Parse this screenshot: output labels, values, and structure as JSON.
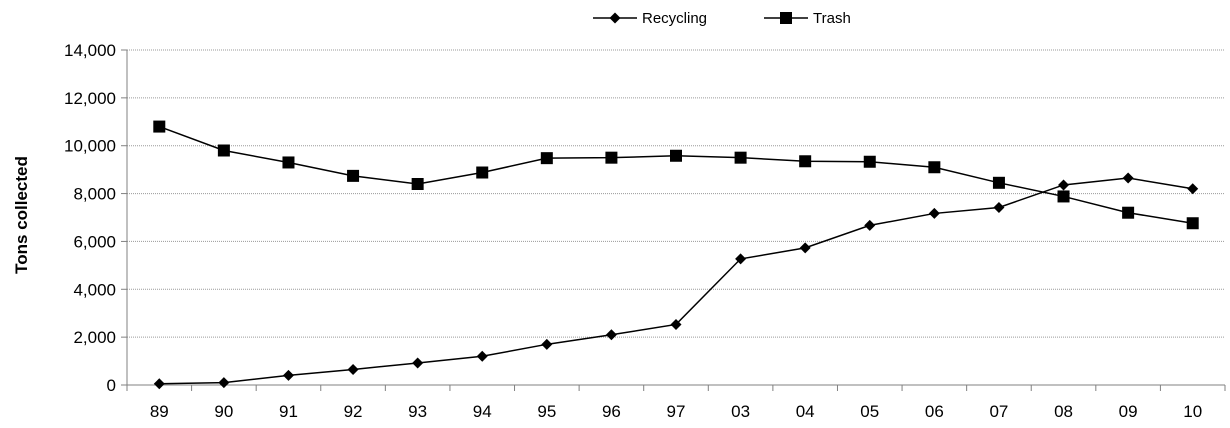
{
  "chart_data": {
    "type": "line",
    "title": "",
    "xlabel": "",
    "ylabel": "Tons collected",
    "categories": [
      "89",
      "90",
      "91",
      "92",
      "93",
      "94",
      "95",
      "96",
      "97",
      "03",
      "04",
      "05",
      "06",
      "07",
      "08",
      "09",
      "10"
    ],
    "series": [
      {
        "name": "Recycling",
        "marker": "diamond",
        "values": [
          50,
          100,
          400,
          650,
          920,
          1200,
          1700,
          2100,
          2530,
          5270,
          5730,
          6670,
          7170,
          7420,
          8360,
          8650,
          8200
        ]
      },
      {
        "name": "Trash",
        "marker": "square",
        "values": [
          10800,
          9800,
          9300,
          8740,
          8400,
          8880,
          9480,
          9500,
          9580,
          9500,
          9350,
          9330,
          9100,
          8450,
          7880,
          7200,
          6760
        ]
      }
    ],
    "ylim": [
      0,
      14000
    ],
    "yticks": [
      0,
      2000,
      4000,
      6000,
      8000,
      10000,
      12000,
      14000
    ],
    "ytick_labels": [
      "0",
      "2,000",
      "4,000",
      "6,000",
      "8,000",
      "10,000",
      "12,000",
      "14,000"
    ],
    "grid": true,
    "legend_position": "top-center",
    "colors": {
      "line": "#000000",
      "grid": "#9a9a9a",
      "axis": "#808080"
    }
  }
}
